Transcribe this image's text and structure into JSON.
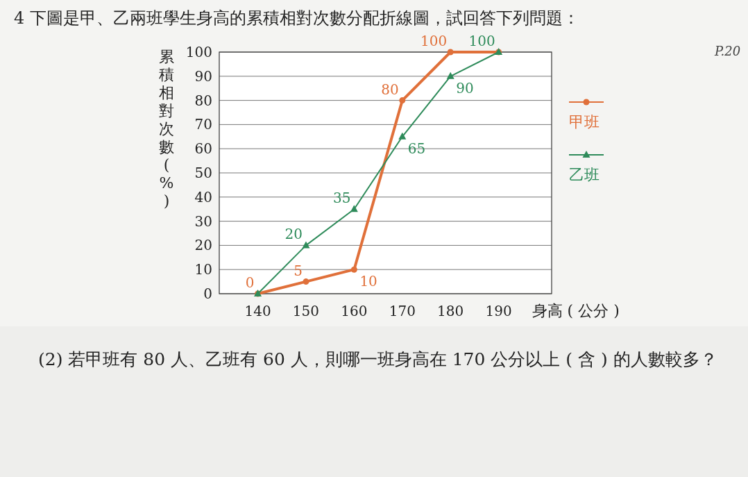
{
  "chart_data": {
    "type": "line",
    "title": "4 下圖是甲、乙兩班學生身高的累積相對次數分配折線圖，試回答下列問題：",
    "xlabel": "身高 ( 公分 )",
    "ylabel": "累積相對次數 (%)",
    "x": [
      140,
      150,
      160,
      170,
      180,
      190
    ],
    "series": [
      {
        "name": "甲班",
        "color": "#e0703a",
        "marker": "circle",
        "values": [
          0,
          5,
          10,
          80,
          100,
          100
        ],
        "value_labels": [
          "0",
          "5",
          "10",
          "80",
          "100",
          null
        ]
      },
      {
        "name": "乙班",
        "color": "#2e8b5a",
        "marker": "triangle",
        "values": [
          0,
          20,
          35,
          65,
          90,
          100
        ],
        "value_labels": [
          null,
          "20",
          "35",
          "65",
          "90",
          "100"
        ]
      }
    ],
    "xlim": [
      132,
      201
    ],
    "ylim": [
      0,
      100
    ],
    "xticks": [
      140,
      150,
      160,
      170,
      180,
      190
    ],
    "yticks": [
      0,
      10,
      20,
      30,
      40,
      50,
      60,
      70,
      80,
      90,
      100
    ],
    "grid": "y",
    "legend": "right",
    "annotations": [
      "P.20",
      "(2) 若甲班有 80 人、乙班有 60 人，則哪一班身高在 170 公分以上 ( 含 ) 的人數較多？"
    ]
  }
}
